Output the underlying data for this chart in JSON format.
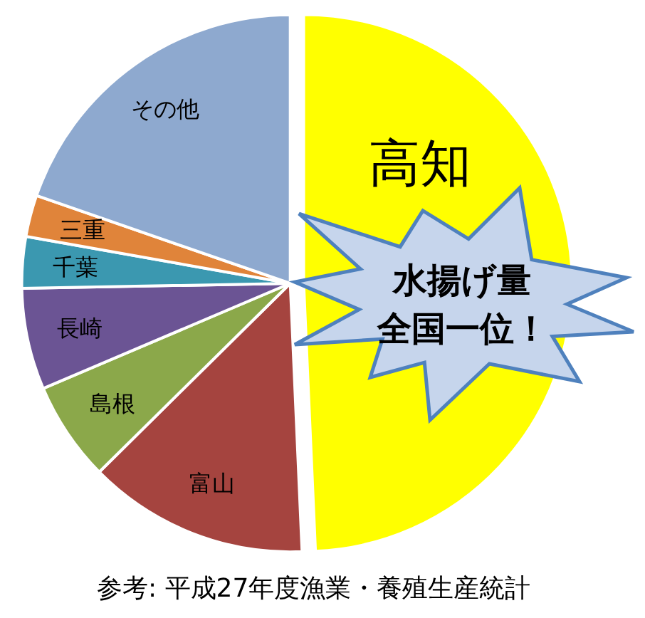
{
  "chart_data": {
    "type": "pie",
    "categories": [
      "高知",
      "富山",
      "島根",
      "長崎",
      "千葉",
      "三重",
      "その他"
    ],
    "values": [
      49.3,
      13.3,
      6.0,
      6.1,
      3.1,
      2.5,
      19.7
    ],
    "colors": [
      "#ffff00",
      "#a5443f",
      "#8ba84a",
      "#6b5494",
      "#3b98b0",
      "#e0843a",
      "#8ea9cf"
    ],
    "annotations": [
      "水揚げ量",
      "全国一位！",
      "参考: 平成27年度漁業・養殖生産統計"
    ]
  }
}
